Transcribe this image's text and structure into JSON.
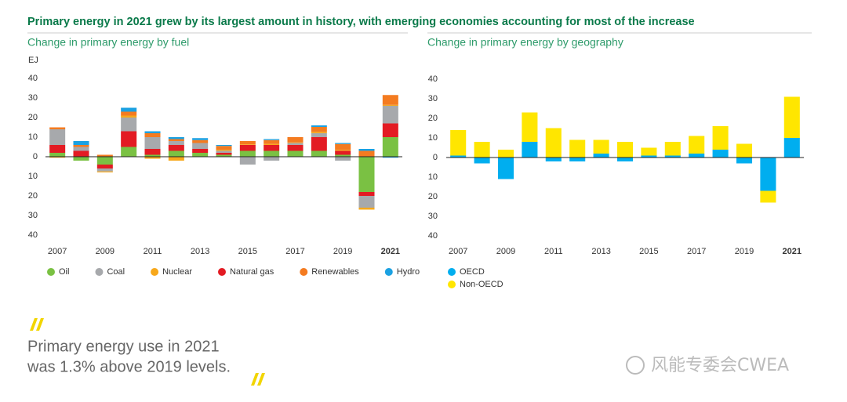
{
  "title": "Primary energy in 2021 grew by its largest amount in history, with emerging economies accounting for most of the increase",
  "chart_data": [
    {
      "type": "bar",
      "stacked": true,
      "title": "Change in primary energy by fuel",
      "y_label": "EJ",
      "categories": [
        "2007",
        null,
        "2009",
        null,
        "2011",
        null,
        "2013",
        null,
        "2015",
        null,
        "2017",
        null,
        "2019",
        null,
        "2021"
      ],
      "series": [
        {
          "name": "Oil",
          "color": "#7ac143",
          "values": [
            2,
            -2,
            -4,
            5,
            1,
            3,
            2,
            1,
            3,
            3,
            3,
            3,
            1,
            -18,
            10
          ]
        },
        {
          "name": "Natural gas",
          "color": "#e31b23",
          "values": [
            4,
            3,
            -2,
            8,
            3,
            3,
            2,
            1,
            3,
            3,
            3,
            7,
            2,
            -2,
            7
          ]
        },
        {
          "name": "Coal",
          "color": "#a7a9ac",
          "values": [
            8,
            2,
            -1.5,
            7,
            6,
            2,
            3,
            1,
            -4,
            -2,
            1,
            2,
            -2,
            -6,
            9
          ]
        },
        {
          "name": "Nuclear",
          "color": "#f7a81b",
          "values": [
            -0.5,
            0,
            -0.5,
            1,
            -1,
            -2,
            0,
            0.5,
            0.3,
            0.5,
            0.3,
            0.7,
            0.5,
            -1,
            0.5
          ]
        },
        {
          "name": "Renewables",
          "color": "#f47b20",
          "values": [
            1,
            1,
            1,
            2,
            2,
            1,
            1.5,
            2,
            1.7,
            2,
            2.7,
            2.5,
            3,
            3,
            5
          ]
        },
        {
          "name": "Hydro",
          "color": "#1ba1e2",
          "values": [
            0,
            2,
            0,
            2,
            1,
            1,
            1,
            0.5,
            0,
            0.5,
            0,
            0.8,
            0.5,
            1,
            -0.5
          ]
        }
      ],
      "legend_order": [
        0,
        2,
        3,
        1,
        4,
        5
      ],
      "legend_layout": "row",
      "ylim": [
        -40,
        40
      ],
      "yticks": [
        {
          "value": -40,
          "label": "40"
        },
        {
          "value": -30,
          "label": "30"
        },
        {
          "value": -20,
          "label": "20"
        },
        {
          "value": -10,
          "label": "10"
        },
        0,
        10,
        20,
        30,
        40
      ],
      "grid": false
    },
    {
      "type": "bar",
      "stacked": true,
      "title": "Change in primary energy by geography",
      "categories": [
        "2007",
        null,
        "2009",
        null,
        "2011",
        null,
        "2013",
        null,
        "2015",
        null,
        "2017",
        null,
        "2019",
        null,
        "2021"
      ],
      "series": [
        {
          "name": "OECD",
          "color": "#00aeef",
          "values": [
            1,
            -3,
            -11,
            8,
            -2,
            -2,
            2,
            -2,
            1,
            1,
            2,
            4,
            -3,
            -17,
            10
          ]
        },
        {
          "name": "Non-OECD",
          "color": "#ffe600",
          "values": [
            13,
            8,
            4,
            15,
            15,
            9,
            7,
            8,
            4,
            7,
            9,
            12,
            7,
            -6,
            21
          ]
        }
      ],
      "legend_order": [
        0,
        1
      ],
      "legend_layout": "column",
      "ylim": [
        -40,
        40
      ],
      "yticks": [
        {
          "value": -40,
          "label": "40"
        },
        {
          "value": -30,
          "label": "30"
        },
        {
          "value": -20,
          "label": "20"
        },
        {
          "value": -10,
          "label": "10"
        },
        0,
        10,
        20,
        30,
        40
      ],
      "grid": false
    }
  ],
  "quote": [
    "Primary energy use in 2021",
    "was 1.3% above 2019 levels."
  ],
  "watermark": "风能专委会CWEA"
}
